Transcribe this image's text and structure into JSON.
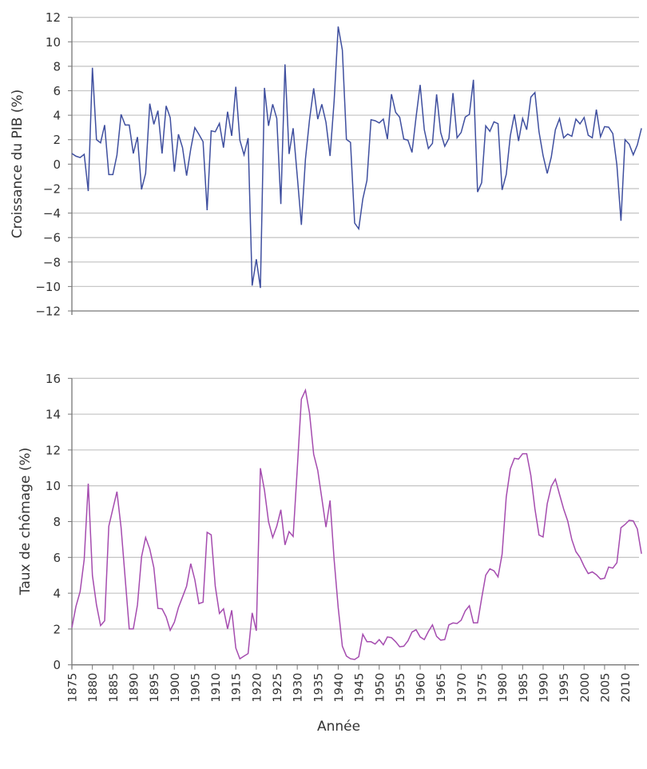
{
  "chart_data": [
    {
      "type": "line",
      "ylabel": "Croissance du PIB (%)",
      "xlabel": "",
      "ylim": [
        -12,
        12
      ],
      "yticks": [
        12,
        10,
        8,
        6,
        4,
        2,
        0,
        -2,
        -4,
        -6,
        -8,
        -10,
        -12
      ],
      "grid": true,
      "color": "#3f4f9f",
      "x_start": 1875,
      "x_end": 2014,
      "values": [
        0.87,
        0.65,
        0.54,
        0.8,
        -2.2,
        7.88,
        2.0,
        1.74,
        3.2,
        -0.85,
        -0.85,
        0.74,
        4.07,
        3.2,
        3.2,
        0.87,
        2.22,
        -2.07,
        -0.76,
        4.94,
        3.26,
        4.37,
        0.87,
        4.76,
        3.79,
        -0.61,
        2.44,
        1.35,
        -0.94,
        1.24,
        2.98,
        2.44,
        1.83,
        -3.76,
        2.72,
        2.65,
        3.33,
        1.35,
        4.29,
        2.31,
        6.33,
        1.96,
        0.76,
        2.13,
        -9.92,
        -7.77,
        -10.12,
        6.24,
        3.13,
        4.9,
        3.74,
        -3.26,
        8.16,
        0.83,
        2.94,
        -0.94,
        -4.96,
        0.41,
        3.63,
        6.2,
        3.68,
        4.9,
        3.42,
        0.67,
        5.16,
        11.25,
        9.33,
        2.02,
        1.78,
        -4.81,
        -5.29,
        -2.85,
        -1.33,
        3.63,
        3.55,
        3.37,
        3.68,
        2.05,
        5.72,
        4.24,
        3.83,
        2.05,
        1.96,
        0.96,
        3.85,
        6.48,
        2.81,
        1.28,
        1.7,
        5.7,
        2.59,
        1.46,
        2.11,
        5.81,
        2.15,
        2.59,
        3.85,
        4.07,
        6.9,
        -2.28,
        -1.52,
        3.13,
        2.68,
        3.46,
        3.31,
        -2.11,
        -0.83,
        2.33,
        4.07,
        1.89,
        3.74,
        2.81,
        5.48,
        5.85,
        2.65,
        0.7,
        -0.76,
        0.59,
        2.81,
        3.72,
        2.15,
        2.46,
        2.28,
        3.68,
        3.29,
        3.81,
        2.37,
        2.15,
        4.46,
        2.24,
        3.07,
        3.02,
        2.5,
        -0.07,
        -4.63,
        2.0,
        1.63,
        0.76,
        1.57,
        2.94
      ]
    },
    {
      "type": "line",
      "ylabel": "Taux de chômage (%)",
      "xlabel": "Année",
      "ylim": [
        0,
        16
      ],
      "yticks": [
        16,
        14,
        12,
        10,
        8,
        6,
        4,
        2,
        0
      ],
      "grid": true,
      "color": "#a54caf",
      "x_start": 1875,
      "x_end": 2014,
      "xticks": [
        "1875",
        "1880",
        "1885",
        "1890",
        "1895",
        "1900",
        "1905",
        "1910",
        "1915",
        "1920",
        "1925",
        "1930",
        "1935",
        "1940",
        "1945",
        "1950",
        "1955",
        "1960",
        "1965",
        "1970",
        "1975",
        "1980",
        "1985",
        "1990",
        "1995",
        "2000",
        "2005",
        "2010"
      ],
      "values": [
        2.08,
        3.27,
        4.09,
        5.88,
        10.12,
        4.99,
        3.35,
        2.19,
        2.46,
        7.74,
        8.71,
        9.67,
        7.66,
        4.84,
        2.01,
        2.01,
        3.35,
        6.03,
        7.11,
        6.47,
        5.43,
        3.15,
        3.13,
        2.68,
        1.93,
        2.38,
        3.2,
        3.79,
        4.39,
        5.65,
        4.76,
        3.42,
        3.5,
        7.4,
        7.26,
        4.39,
        2.87,
        3.13,
        2.01,
        3.05,
        0.94,
        0.34,
        0.49,
        0.63,
        2.9,
        1.9,
        10.98,
        9.75,
        7.99,
        7.11,
        7.74,
        8.66,
        6.7,
        7.44,
        7.17,
        10.9,
        14.84,
        15.34,
        14.06,
        11.76,
        10.86,
        9.3,
        7.69,
        9.18,
        5.88,
        3.2,
        1.04,
        0.49,
        0.34,
        0.3,
        0.45,
        1.71,
        1.29,
        1.29,
        1.16,
        1.41,
        1.12,
        1.56,
        1.52,
        1.29,
        1.01,
        1.04,
        1.34,
        1.83,
        1.96,
        1.56,
        1.41,
        1.86,
        2.23,
        1.59,
        1.38,
        1.41,
        2.23,
        2.34,
        2.31,
        2.49,
        3.02,
        3.3,
        2.35,
        2.35,
        3.72,
        5.01,
        5.36,
        5.25,
        4.91,
        6.18,
        9.38,
        10.94,
        11.53,
        11.49,
        11.79,
        11.79,
        10.57,
        8.71,
        7.25,
        7.14,
        9.0,
        9.97,
        10.37,
        9.52,
        8.71,
        8.04,
        6.99,
        6.32,
        6.0,
        5.5,
        5.1,
        5.19,
        5.03,
        4.79,
        4.84,
        5.46,
        5.4,
        5.7,
        7.66,
        7.84,
        8.07,
        8.04,
        7.59,
        6.2
      ]
    }
  ]
}
